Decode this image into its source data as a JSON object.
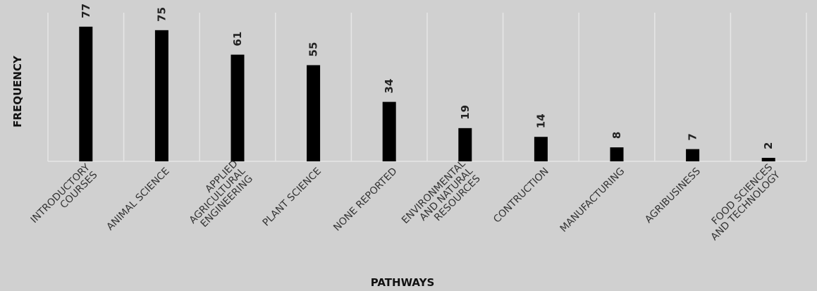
{
  "chart_data": {
    "type": "bar",
    "title": "",
    "xlabel": "PATHWAYS",
    "ylabel": "FREQUENCY",
    "categories": [
      [
        "INTRODUCTORY",
        "COURSES"
      ],
      [
        "ANIMAL SCIENCE"
      ],
      [
        "APPLIED",
        "AGRICULTURAL",
        "ENGINEERING"
      ],
      [
        "PLANT SCIENCE"
      ],
      [
        "NONE REPORTED"
      ],
      [
        "ENVIRONMENTAL",
        "AND NATURAL",
        "RESOURCES"
      ],
      [
        "CONTRUCTION"
      ],
      [
        "MANUFACTURING"
      ],
      [
        "AGRIBUSINESS"
      ],
      [
        "FOOD SCIENCES",
        "AND TECHNOLOGY"
      ]
    ],
    "values": [
      77,
      75,
      61,
      55,
      34,
      19,
      14,
      8,
      7,
      2
    ],
    "ylim": [
      0,
      85
    ],
    "grid": "vertical separators",
    "bar_color": "#000000",
    "background": "#d0d0d0"
  }
}
